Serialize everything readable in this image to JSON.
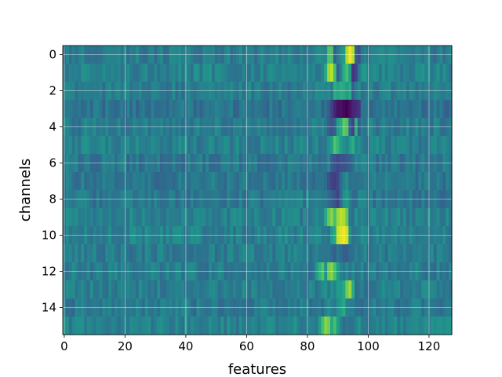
{
  "chart_data": {
    "type": "heatmap",
    "title": "",
    "xlabel": "features",
    "ylabel": "channels",
    "xlim": [
      -0.5,
      127.5
    ],
    "ylim": [
      15.5,
      -0.5
    ],
    "xticks": [
      0,
      20,
      40,
      60,
      80,
      100,
      120
    ],
    "yticks": [
      0,
      2,
      4,
      6,
      8,
      10,
      12,
      14
    ],
    "grid": true,
    "colormap": "viridis",
    "n_rows": 16,
    "n_cols": 128,
    "rows": [
      {
        "base": 0.42,
        "hot": [
          [
            87,
            0.72
          ],
          [
            88,
            0.72
          ],
          [
            89,
            0.3
          ],
          [
            91,
            0.5
          ],
          [
            92,
            0.55
          ],
          [
            93,
            0.88
          ],
          [
            94,
            0.98
          ],
          [
            95,
            0.9
          ],
          [
            96,
            0.3
          ],
          [
            97,
            0.25
          ],
          [
            98,
            0.4
          ]
        ]
      },
      {
        "base": 0.45,
        "hot": [
          [
            86,
            0.6
          ],
          [
            87,
            0.85
          ],
          [
            88,
            0.9
          ],
          [
            89,
            0.7
          ],
          [
            90,
            0.3
          ],
          [
            92,
            0.62
          ],
          [
            93,
            0.7
          ],
          [
            94,
            0.55
          ],
          [
            95,
            0.15
          ],
          [
            96,
            0.2
          ],
          [
            98,
            0.52
          ],
          [
            99,
            0.55
          ]
        ]
      },
      {
        "base": 0.42,
        "hot": [
          [
            89,
            0.62
          ],
          [
            90,
            0.58
          ],
          [
            91,
            0.62
          ],
          [
            92,
            0.6
          ],
          [
            93,
            0.55
          ],
          [
            94,
            0.6
          ],
          [
            95,
            0.3
          ]
        ]
      },
      {
        "base": 0.38,
        "hot": [
          [
            88,
            0.2
          ],
          [
            89,
            0.1
          ],
          [
            90,
            0.05
          ],
          [
            91,
            0.05
          ],
          [
            92,
            0.02
          ],
          [
            93,
            0.0
          ],
          [
            94,
            0.05
          ],
          [
            95,
            0.1
          ],
          [
            96,
            0.12
          ],
          [
            97,
            0.15
          ]
        ]
      },
      {
        "base": 0.42,
        "hot": [
          [
            87,
            0.3
          ],
          [
            88,
            0.25
          ],
          [
            89,
            0.3
          ],
          [
            90,
            0.55
          ],
          [
            91,
            0.6
          ],
          [
            92,
            0.75
          ],
          [
            93,
            0.72
          ],
          [
            94,
            0.3
          ],
          [
            95,
            0.2
          ],
          [
            96,
            0.62
          ],
          [
            97,
            0.3
          ]
        ]
      },
      {
        "base": 0.44,
        "hot": [
          [
            87,
            0.5
          ],
          [
            88,
            0.55
          ],
          [
            89,
            0.72
          ],
          [
            90,
            0.65
          ],
          [
            91,
            0.55
          ],
          [
            92,
            0.5
          ],
          [
            93,
            0.45
          ],
          [
            94,
            0.55
          ],
          [
            95,
            0.62
          ]
        ]
      },
      {
        "base": 0.4,
        "hot": [
          [
            88,
            0.3
          ],
          [
            89,
            0.25
          ],
          [
            90,
            0.22
          ],
          [
            91,
            0.25
          ],
          [
            92,
            0.25
          ],
          [
            93,
            0.28
          ],
          [
            94,
            0.3
          ],
          [
            95,
            0.35
          ]
        ]
      },
      {
        "base": 0.4,
        "hot": [
          [
            87,
            0.25
          ],
          [
            88,
            0.2
          ],
          [
            89,
            0.18
          ],
          [
            90,
            0.22
          ],
          [
            91,
            0.35
          ],
          [
            92,
            0.45
          ],
          [
            93,
            0.5
          ]
        ]
      },
      {
        "base": 0.4,
        "hot": [
          [
            87,
            0.35
          ],
          [
            88,
            0.3
          ],
          [
            89,
            0.25
          ],
          [
            90,
            0.2
          ],
          [
            91,
            0.35
          ],
          [
            92,
            0.5
          ],
          [
            93,
            0.55
          ],
          [
            94,
            0.45
          ]
        ]
      },
      {
        "base": 0.44,
        "hot": [
          [
            86,
            0.6
          ],
          [
            87,
            0.75
          ],
          [
            88,
            0.82
          ],
          [
            89,
            0.7
          ],
          [
            90,
            0.85
          ],
          [
            91,
            0.9
          ],
          [
            92,
            0.88
          ],
          [
            93,
            0.75
          ],
          [
            94,
            0.4
          ]
        ]
      },
      {
        "base": 0.44,
        "hot": [
          [
            88,
            0.55
          ],
          [
            89,
            0.6
          ],
          [
            90,
            0.92
          ],
          [
            91,
            0.95
          ],
          [
            92,
            0.98
          ],
          [
            93,
            0.93
          ],
          [
            94,
            0.5
          ]
        ]
      },
      {
        "base": 0.42,
        "hot": [
          [
            88,
            0.35
          ],
          [
            89,
            0.3
          ],
          [
            90,
            0.4
          ],
          [
            91,
            0.35
          ],
          [
            92,
            0.3
          ],
          [
            93,
            0.3
          ],
          [
            94,
            0.35
          ]
        ]
      },
      {
        "base": 0.42,
        "hot": [
          [
            83,
            0.55
          ],
          [
            84,
            0.65
          ],
          [
            85,
            0.72
          ],
          [
            86,
            0.5
          ],
          [
            87,
            0.78
          ],
          [
            88,
            0.82
          ],
          [
            89,
            0.7
          ],
          [
            90,
            0.55
          ]
        ]
      },
      {
        "base": 0.43,
        "hot": [
          [
            88,
            0.5
          ],
          [
            89,
            0.45
          ],
          [
            90,
            0.55
          ],
          [
            91,
            0.55
          ],
          [
            92,
            0.6
          ],
          [
            93,
            0.78
          ],
          [
            94,
            0.85
          ],
          [
            95,
            0.62
          ]
        ]
      },
      {
        "base": 0.41,
        "hot": [
          [
            86,
            0.45
          ],
          [
            87,
            0.5
          ],
          [
            88,
            0.45
          ],
          [
            89,
            0.4
          ],
          [
            90,
            0.5
          ],
          [
            91,
            0.55
          ],
          [
            92,
            0.6
          ]
        ]
      },
      {
        "base": 0.45,
        "hot": [
          [
            84,
            0.55
          ],
          [
            85,
            0.7
          ],
          [
            86,
            0.82
          ],
          [
            87,
            0.78
          ],
          [
            88,
            0.6
          ],
          [
            89,
            0.7
          ],
          [
            90,
            0.55
          ],
          [
            91,
            0.45
          ],
          [
            92,
            0.35
          ]
        ]
      }
    ]
  }
}
